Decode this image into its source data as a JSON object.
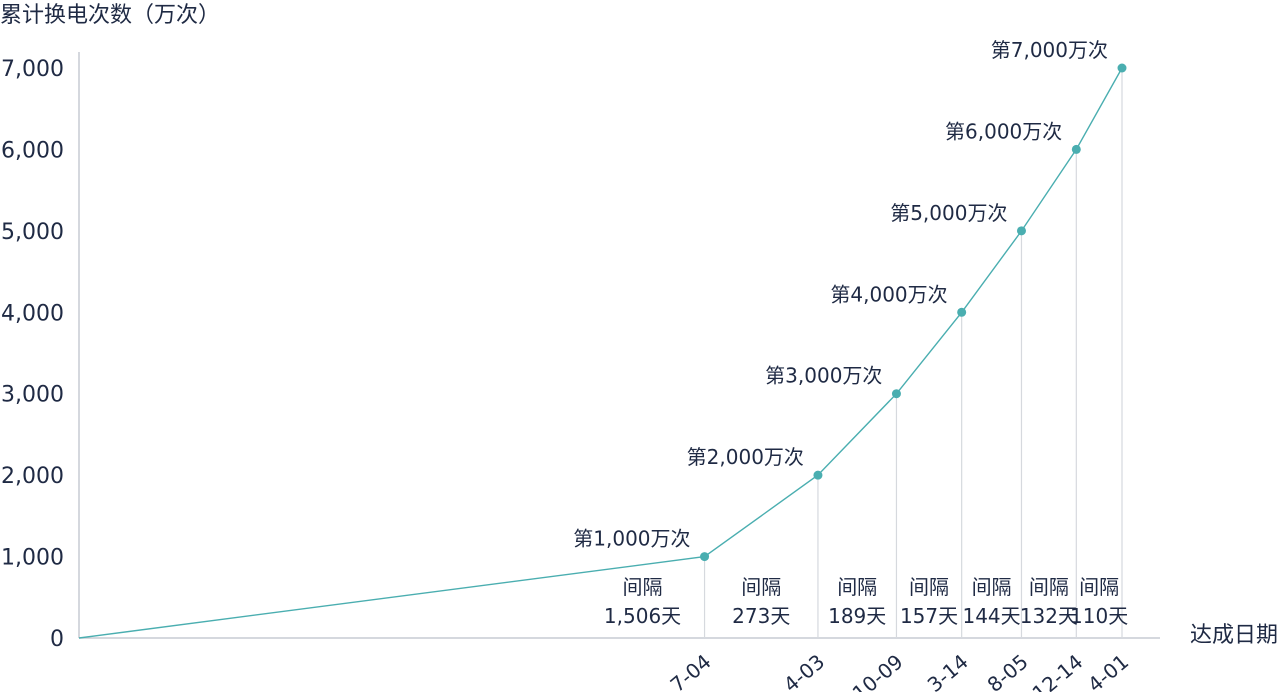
{
  "chart_data": {
    "type": "line",
    "ylabel": "累计换电次数（万次）",
    "xlabel": "达成日期",
    "ylim": [
      0,
      7000
    ],
    "yticks": [
      0,
      1000,
      2000,
      3000,
      4000,
      5000,
      6000,
      7000
    ],
    "ytick_labels": [
      "0",
      "1,000",
      "2,000",
      "3,000",
      "4,000",
      "5,000",
      "6,000",
      "7,000"
    ],
    "grid": false,
    "series": [
      {
        "values": [
          0,
          1000,
          2000,
          3000,
          4000,
          5000,
          6000,
          7000
        ],
        "color": "#4aaeb0"
      }
    ],
    "points": [
      {
        "days": 0,
        "value": 0
      },
      {
        "days": 1506,
        "value": 1000,
        "label": "第1,000万次",
        "interval_prefix": "间隔",
        "interval": "1,506天",
        "date_tick": "7-04"
      },
      {
        "days": 1779,
        "value": 2000,
        "label": "第2,000万次",
        "interval_prefix": "间隔",
        "interval": "273天",
        "date_tick": "4-03"
      },
      {
        "days": 1968,
        "value": 3000,
        "label": "第3,000万次",
        "interval_prefix": "间隔",
        "interval": "189天",
        "date_tick": "10-09"
      },
      {
        "days": 2125,
        "value": 4000,
        "label": "第4,000万次",
        "interval_prefix": "间隔",
        "interval": "157天",
        "date_tick": "3-14"
      },
      {
        "days": 2269,
        "value": 5000,
        "label": "第5,000万次",
        "interval_prefix": "间隔",
        "interval": "144天",
        "date_tick": "8-05"
      },
      {
        "days": 2401,
        "value": 6000,
        "label": "第6,000万次",
        "interval_prefix": "间隔",
        "interval": "132天",
        "date_tick": "12-14"
      },
      {
        "days": 2511,
        "value": 7000,
        "label": "第7,000万次",
        "interval_prefix": "间隔",
        "interval": "110天",
        "date_tick": "4-01"
      }
    ],
    "colors": {
      "line": "#4aaeb0",
      "axis": "#c7ccd3",
      "guide": "#d6d9de",
      "text": "#1f2a44"
    }
  }
}
